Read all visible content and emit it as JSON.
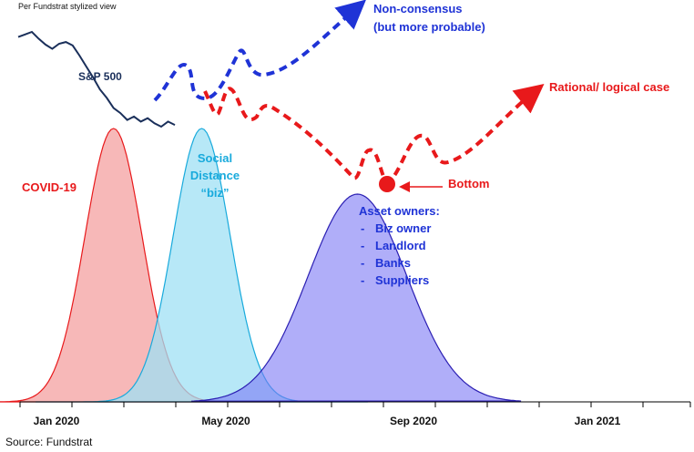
{
  "chart_data": {
    "type": "area",
    "title": "",
    "subtitle": "Per Fundstrat stylized view",
    "source": "Source: Fundstrat",
    "xlabel": "",
    "ylabel": "",
    "x_ticks": [
      "Jan 2020",
      "May 2020",
      "Sep 2020",
      "Jan 2021"
    ],
    "grid": false,
    "legend": "none",
    "series": [
      {
        "name": "S&P 500",
        "kind": "line",
        "color": "#1a2f5a",
        "y": [
          180,
          183,
          186,
          178,
          171,
          166,
          172,
          174,
          170,
          158,
          145,
          132,
          118,
          108,
          96,
          90,
          82,
          86,
          80,
          84,
          78,
          74,
          80,
          76
        ]
      },
      {
        "name": "Non-consensus (but more probable)",
        "kind": "dashed-projection",
        "color": "#1f33d6"
      },
      {
        "name": "Rational/ logical case",
        "kind": "dashed-projection",
        "color": "#e8191b"
      },
      {
        "name": "COVID-19",
        "kind": "bell",
        "color": "#e8191b",
        "fill": "#f4a0a0",
        "peak_month": 1.8,
        "height": 1.0
      },
      {
        "name": "Social Distance “biz”",
        "kind": "bell",
        "color": "#18aadc",
        "fill": "#9fe0f4",
        "peak_month": 3.5,
        "height": 1.0
      },
      {
        "name": "Asset owners",
        "kind": "bell",
        "color": "#2b1fb3",
        "fill": "#9a98f7",
        "peak_month": 6.5,
        "height": 0.76
      }
    ]
  },
  "labels": {
    "subtitle": "Per Fundstrat stylized view",
    "sp500": "S&P 500",
    "nonconsensus_1": "Non-consensus",
    "nonconsensus_2": "(but more probable)",
    "rational": "Rational/ logical case",
    "covid": "COVID-19",
    "social_1": "Social",
    "social_2": "Distance",
    "social_3": "“biz”",
    "bottom": "Bottom",
    "asset_title": "Asset owners:",
    "asset_items": [
      "Biz owner",
      "Landlord",
      "Banks",
      "Suppliers"
    ],
    "dash": "-",
    "source": "Source: Fundstrat"
  },
  "colors": {
    "blue": "#1f33d6",
    "red": "#e8191b",
    "navy": "#1a2f5a",
    "cyan": "#18aadc",
    "purple": "#2b1fb3"
  }
}
